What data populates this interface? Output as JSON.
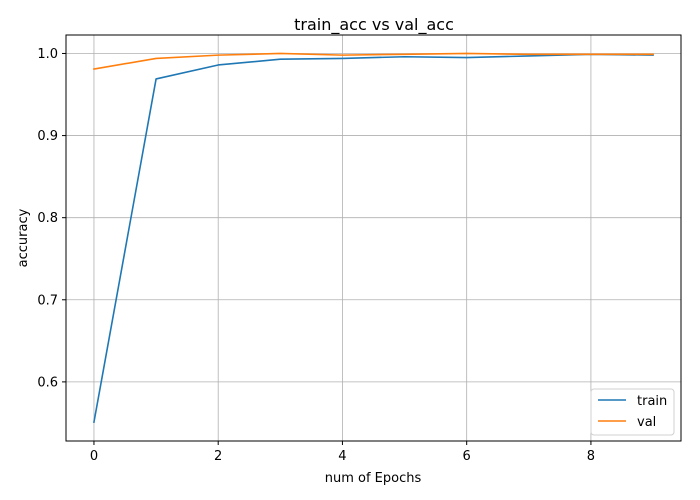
{
  "chart_data": {
    "type": "line",
    "title": "train_acc vs val_acc",
    "xlabel": "num of Epochs",
    "ylabel": "accuracy",
    "x": [
      0,
      1,
      2,
      3,
      4,
      5,
      6,
      7,
      8,
      9
    ],
    "xlim": [
      -0.45,
      9.45
    ],
    "ylim": [
      0.528,
      1.0225
    ],
    "xticks": [
      0,
      2,
      4,
      6,
      8
    ],
    "yticks": [
      0.6,
      0.7,
      0.8,
      0.9,
      1.0
    ],
    "ytick_labels": [
      "0.6",
      "0.7",
      "0.8",
      "0.9",
      "1.0"
    ],
    "grid": true,
    "legend_position": "lower right",
    "series": [
      {
        "name": "train",
        "color": "#1f77b4",
        "values": [
          0.551,
          0.969,
          0.986,
          0.993,
          0.994,
          0.996,
          0.995,
          0.997,
          0.999,
          0.998
        ]
      },
      {
        "name": "val",
        "color": "#ff7f0e",
        "values": [
          0.981,
          0.994,
          0.998,
          1.0,
          0.998,
          0.999,
          1.0,
          0.999,
          0.999,
          0.999
        ]
      }
    ]
  }
}
